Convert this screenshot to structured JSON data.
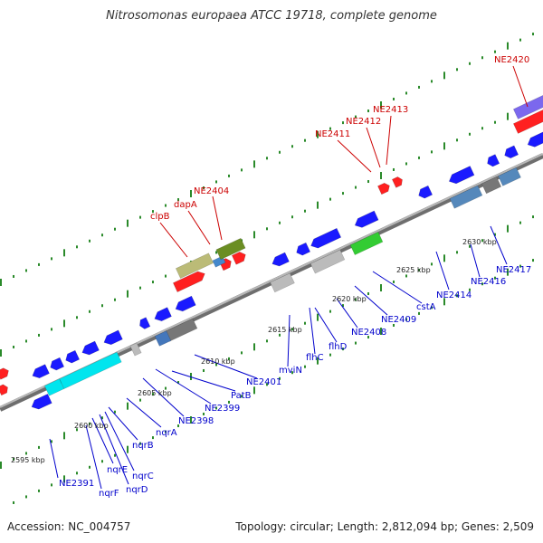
{
  "title": "Nitrosomonas europaea ATCC 19718, complete genome",
  "footer": {
    "accession": "Accession: NC_004757",
    "summary": "Topology: circular; Length: 2,812,094 bp; Genes: 2,509"
  },
  "colors": {
    "blue_gene": "#1a1aff",
    "red_gene": "#ff2020",
    "upper_label": "#cc0000",
    "lower_label": "#0000cc",
    "backbone": "#888888",
    "tick_green": "#2a8a2a"
  },
  "ticks": [
    {
      "label": "2595 kbp"
    },
    {
      "label": "2600 kbp"
    },
    {
      "label": "2605 kbp"
    },
    {
      "label": "2610 kbp"
    },
    {
      "label": "2615 kbp"
    },
    {
      "label": "2620 kbp"
    },
    {
      "label": "2625 kbp"
    },
    {
      "label": "2630 kbp"
    }
  ],
  "upper_labels": [
    {
      "text": "clpB"
    },
    {
      "text": "dapA"
    },
    {
      "text": "NE2404"
    },
    {
      "text": "NE2411"
    },
    {
      "text": "NE2412"
    },
    {
      "text": "NE2413"
    },
    {
      "text": "NE2420"
    }
  ],
  "lower_labels": [
    {
      "text": "NE2391"
    },
    {
      "text": "nqrF"
    },
    {
      "text": "nqrE"
    },
    {
      "text": "nqrD"
    },
    {
      "text": "nqrC"
    },
    {
      "text": "nqrB"
    },
    {
      "text": "nqrA"
    },
    {
      "text": "NE2398"
    },
    {
      "text": "NE2399"
    },
    {
      "text": "PatB"
    },
    {
      "text": "NE2401"
    },
    {
      "text": "mviN"
    },
    {
      "text": "flhC"
    },
    {
      "text": "flhD"
    },
    {
      "text": "NE2408"
    },
    {
      "text": "NE2409"
    },
    {
      "text": "cstA"
    },
    {
      "text": "NE2414"
    },
    {
      "text": "NE2416"
    },
    {
      "text": "NE2417"
    }
  ]
}
